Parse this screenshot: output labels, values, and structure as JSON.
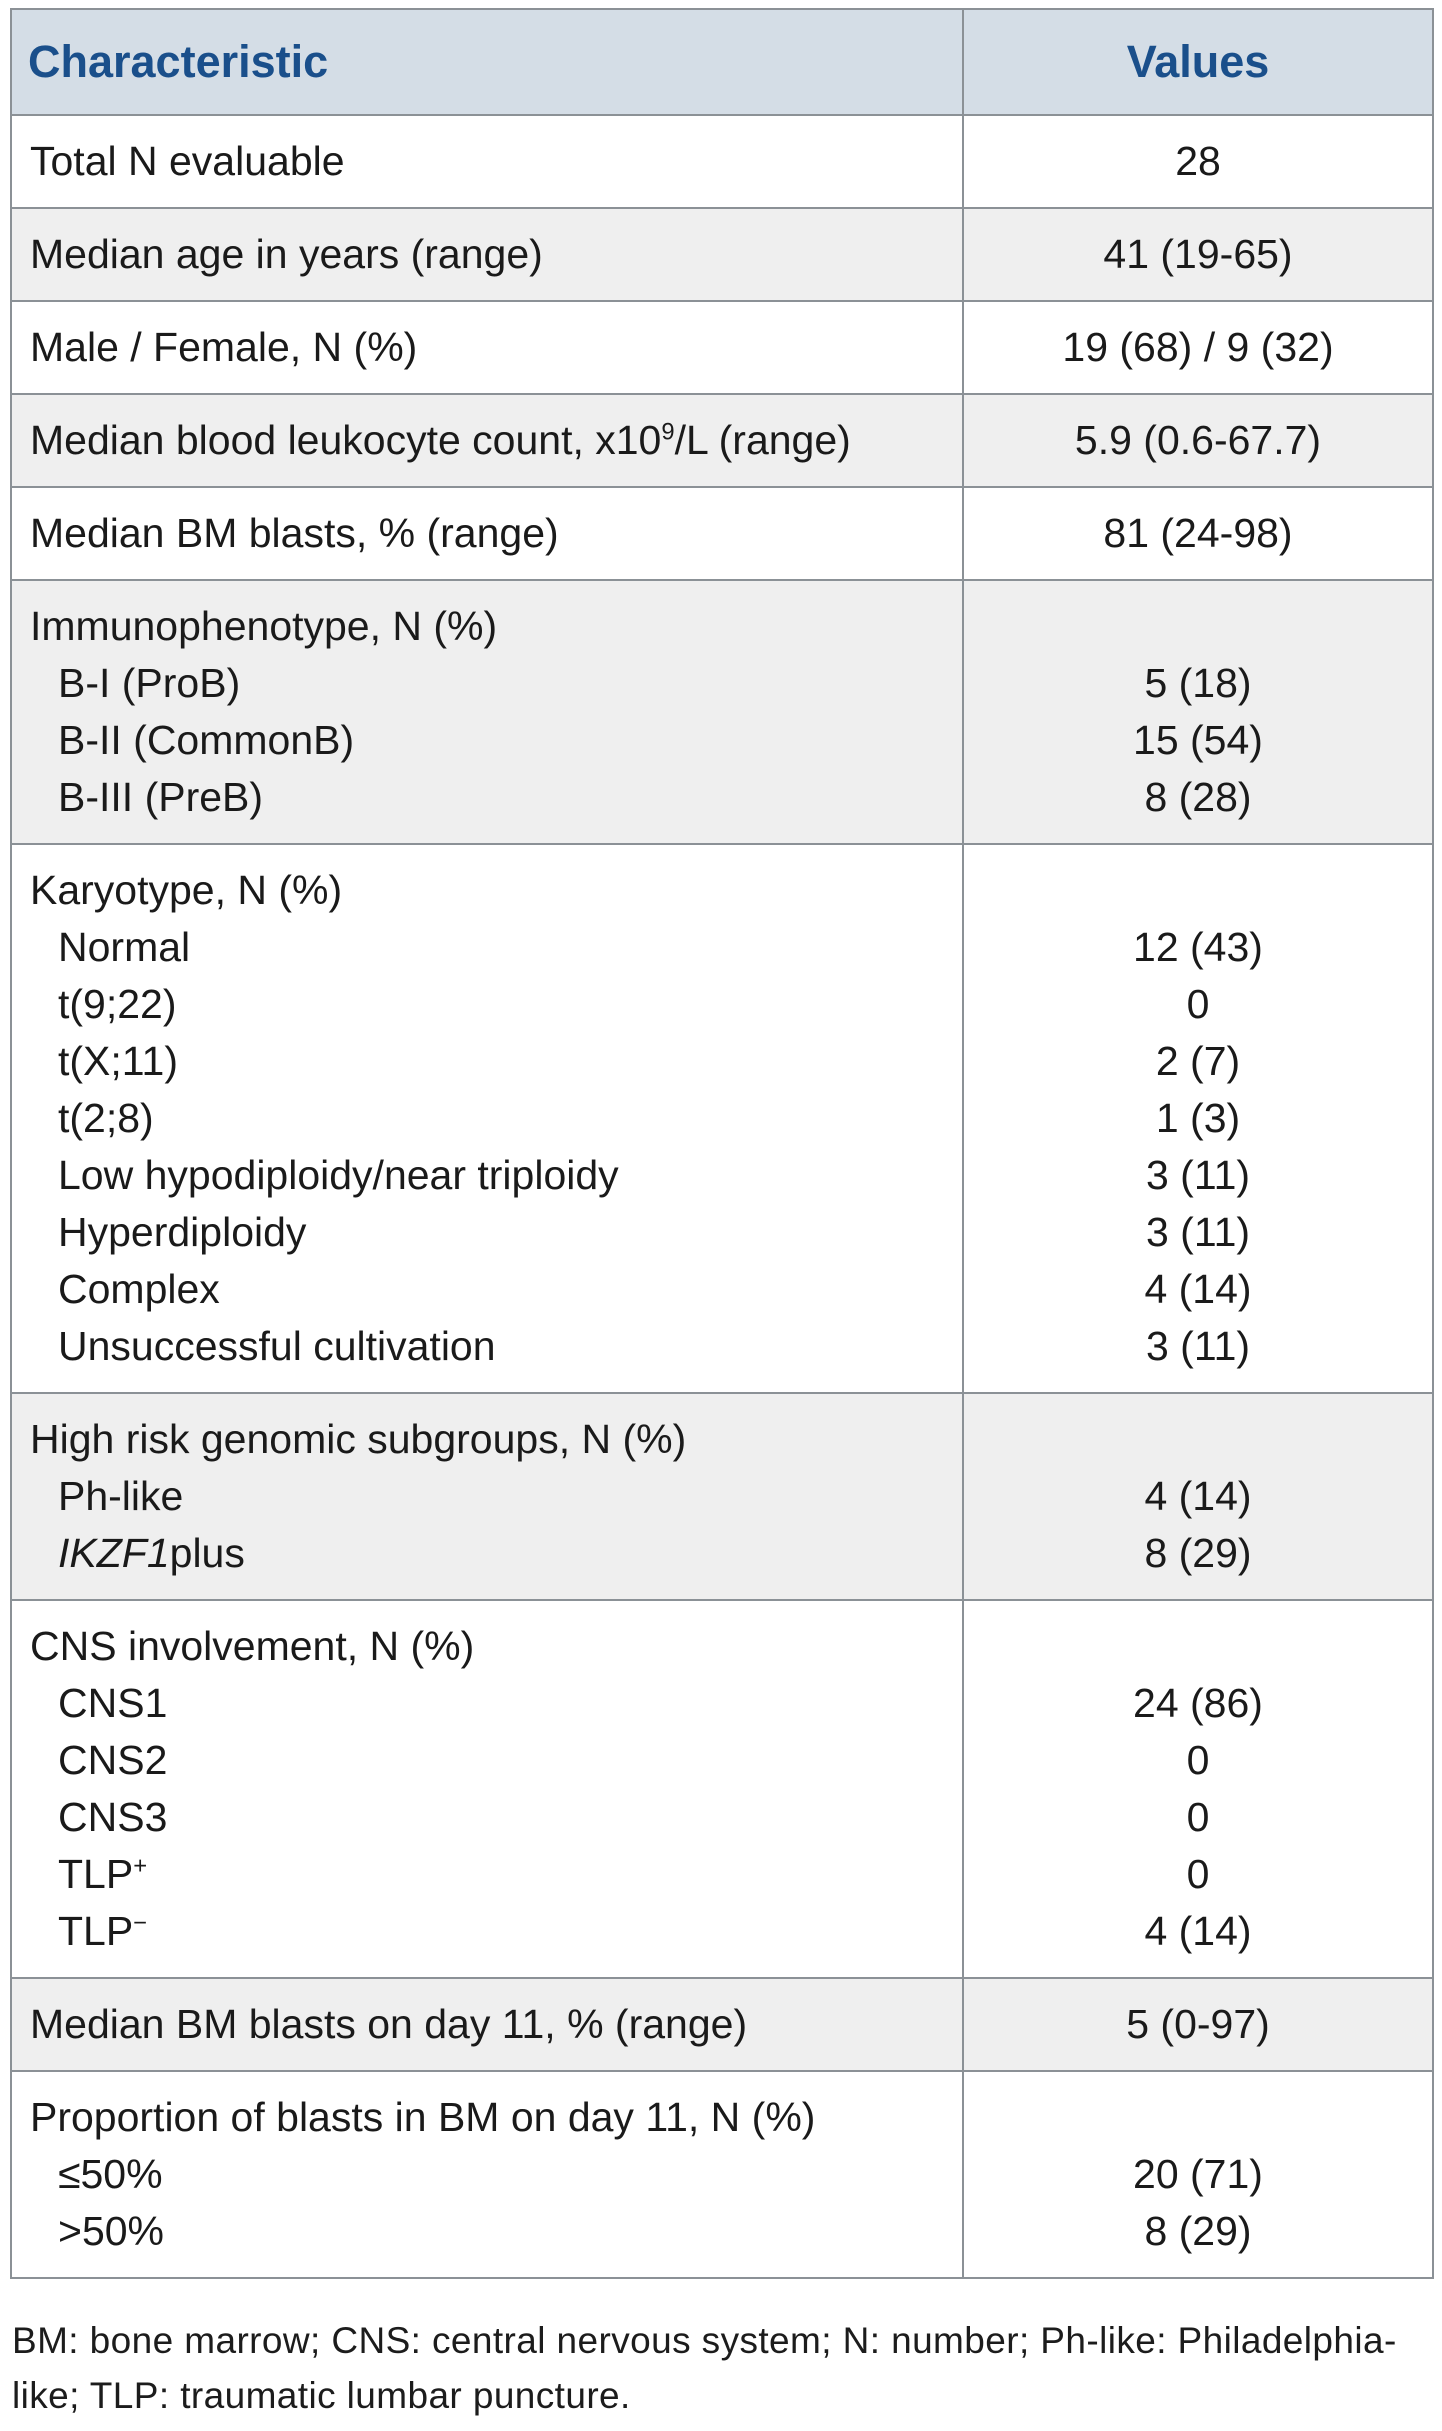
{
  "colors": {
    "header_bg": "#d4dde6",
    "header_text": "#1a4f8b",
    "row_alt_bg": "#efefef",
    "border": "#8b9196",
    "body_text": "#1a1a1a"
  },
  "table": {
    "header": {
      "characteristic": "Characteristic",
      "values": "Values"
    },
    "rows": [
      {
        "shaded": false,
        "label_lines": [
          {
            "indent": false,
            "segs": [
              {
                "t": "Total N evaluable"
              }
            ]
          }
        ],
        "value_lines": [
          "28"
        ]
      },
      {
        "shaded": true,
        "label_lines": [
          {
            "indent": false,
            "segs": [
              {
                "t": "Median age in years (range)"
              }
            ]
          }
        ],
        "value_lines": [
          "41 (19-65)"
        ]
      },
      {
        "shaded": false,
        "label_lines": [
          {
            "indent": false,
            "segs": [
              {
                "t": "Male / Female, N (%)"
              }
            ]
          }
        ],
        "value_lines": [
          "19 (68) / 9 (32)"
        ]
      },
      {
        "shaded": true,
        "label_lines": [
          {
            "indent": false,
            "segs": [
              {
                "t": "Median blood leukocyte count, x10"
              },
              {
                "t": "9",
                "s": "sup"
              },
              {
                "t": "/L (range)"
              }
            ]
          }
        ],
        "value_lines": [
          "5.9 (0.6-67.7)"
        ]
      },
      {
        "shaded": false,
        "label_lines": [
          {
            "indent": false,
            "segs": [
              {
                "t": "Median BM blasts, % (range)"
              }
            ]
          }
        ],
        "value_lines": [
          "81 (24-98)"
        ]
      },
      {
        "shaded": true,
        "label_lines": [
          {
            "indent": false,
            "segs": [
              {
                "t": "Immunophenotype, N (%)"
              }
            ]
          },
          {
            "indent": true,
            "segs": [
              {
                "t": "B-I (ProB)"
              }
            ]
          },
          {
            "indent": true,
            "segs": [
              {
                "t": "B-II (CommonB)"
              }
            ]
          },
          {
            "indent": true,
            "segs": [
              {
                "t": "B-III (PreB)"
              }
            ]
          }
        ],
        "value_lines": [
          "",
          "5 (18)",
          "15 (54)",
          "8 (28)"
        ]
      },
      {
        "shaded": false,
        "label_lines": [
          {
            "indent": false,
            "segs": [
              {
                "t": "Karyotype, N (%)"
              }
            ]
          },
          {
            "indent": true,
            "segs": [
              {
                "t": "Normal"
              }
            ]
          },
          {
            "indent": true,
            "segs": [
              {
                "t": "t(9;22)"
              }
            ]
          },
          {
            "indent": true,
            "segs": [
              {
                "t": "t(X;11)"
              }
            ]
          },
          {
            "indent": true,
            "segs": [
              {
                "t": "t(2;8)"
              }
            ]
          },
          {
            "indent": true,
            "segs": [
              {
                "t": "Low hypodiploidy/near triploidy"
              }
            ]
          },
          {
            "indent": true,
            "segs": [
              {
                "t": "Hyperdiploidy"
              }
            ]
          },
          {
            "indent": true,
            "segs": [
              {
                "t": "Complex"
              }
            ]
          },
          {
            "indent": true,
            "segs": [
              {
                "t": "Unsuccessful cultivation"
              }
            ]
          }
        ],
        "value_lines": [
          "",
          "12 (43)",
          "0",
          "2 (7)",
          "1 (3)",
          "3 (11)",
          "3 (11)",
          "4 (14)",
          "3 (11)"
        ]
      },
      {
        "shaded": true,
        "label_lines": [
          {
            "indent": false,
            "segs": [
              {
                "t": "High risk genomic subgroups, N (%)"
              }
            ]
          },
          {
            "indent": true,
            "segs": [
              {
                "t": "Ph-like"
              }
            ]
          },
          {
            "indent": true,
            "segs": [
              {
                "t": "IKZF1",
                "s": "it"
              },
              {
                "t": "plus"
              }
            ]
          }
        ],
        "value_lines": [
          "",
          "4 (14)",
          "8 (29)"
        ]
      },
      {
        "shaded": false,
        "label_lines": [
          {
            "indent": false,
            "segs": [
              {
                "t": "CNS involvement, N (%)"
              }
            ]
          },
          {
            "indent": true,
            "segs": [
              {
                "t": "CNS1"
              }
            ]
          },
          {
            "indent": true,
            "segs": [
              {
                "t": "CNS2"
              }
            ]
          },
          {
            "indent": true,
            "segs": [
              {
                "t": "CNS3"
              }
            ]
          },
          {
            "indent": true,
            "segs": [
              {
                "t": "TLP"
              },
              {
                "t": "+",
                "s": "sup"
              }
            ]
          },
          {
            "indent": true,
            "segs": [
              {
                "t": "TLP"
              },
              {
                "t": "−",
                "s": "sup"
              }
            ]
          }
        ],
        "value_lines": [
          "",
          "24 (86)",
          "0",
          "0",
          "0",
          "4 (14)"
        ]
      },
      {
        "shaded": true,
        "label_lines": [
          {
            "indent": false,
            "segs": [
              {
                "t": "Median BM blasts on day 11, % (range)"
              }
            ]
          }
        ],
        "value_lines": [
          "5 (0-97)"
        ]
      },
      {
        "shaded": false,
        "label_lines": [
          {
            "indent": false,
            "segs": [
              {
                "t": "Proportion of blasts in BM on day 11, N (%)"
              }
            ]
          },
          {
            "indent": true,
            "segs": [
              {
                "t": "≤50%"
              }
            ]
          },
          {
            "indent": true,
            "segs": [
              {
                "t": ">50%"
              }
            ]
          }
        ],
        "value_lines": [
          "",
          "20 (71)",
          "8 (29)"
        ]
      }
    ]
  },
  "footnote": "BM: bone marrow; CNS: central nervous system; N: number; Ph-like: Philadelphia-like; TLP: traumatic lumbar puncture."
}
